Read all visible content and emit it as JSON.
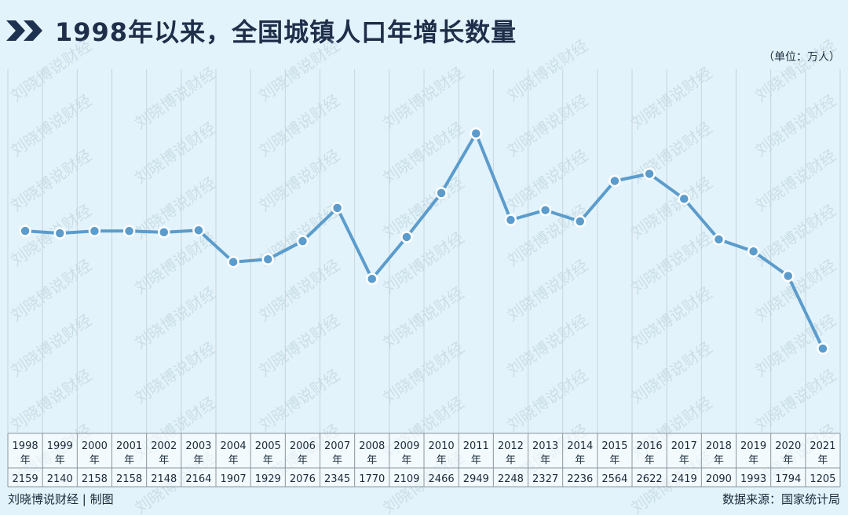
{
  "header": {
    "title": "1998年以来，全国城镇人口年增长数量",
    "unit_label": "（单位：万人）"
  },
  "footer": {
    "credit": "刘晓博说财经 | 制图",
    "source": "数据来源：国家统计局"
  },
  "watermark": "刘晓博说财经",
  "colors": {
    "background": "#e3f3fb",
    "line": "#5b9ccc",
    "title_arrow": "#1d3150",
    "grid": "#c9d4da"
  },
  "icons": {
    "title_marker": "double-chevron-right-icon"
  },
  "chart_data": {
    "type": "line",
    "title": "1998年以来，全国城镇人口年增长数量",
    "unit": "（单位：万人）",
    "categories": [
      "1998年",
      "1999年",
      "2000年",
      "2001年",
      "2002年",
      "2003年",
      "2004年",
      "2005年",
      "2006年",
      "2007年",
      "2008年",
      "2009年",
      "2010年",
      "2011年",
      "2012年",
      "2013年",
      "2014年",
      "2015年",
      "2016年",
      "2017年",
      "2018年",
      "2019年",
      "2020年",
      "2021年"
    ],
    "year_labels": [
      "1998",
      "1999",
      "2000",
      "2001",
      "2002",
      "2003",
      "2004",
      "2005",
      "2006",
      "2007",
      "2008",
      "2009",
      "2010",
      "2011",
      "2012",
      "2013",
      "2014",
      "2015",
      "2016",
      "2017",
      "2018",
      "2019",
      "2020",
      "2021"
    ],
    "year_suffix": "年",
    "values": [
      2159,
      2140,
      2158,
      2158,
      2148,
      2164,
      1907,
      1929,
      2076,
      2345,
      1770,
      2109,
      2466,
      2949,
      2248,
      2327,
      2236,
      2564,
      2622,
      2419,
      2090,
      1993,
      1794,
      1205
    ],
    "markers": true,
    "data_table": true,
    "grid": "vertical"
  }
}
